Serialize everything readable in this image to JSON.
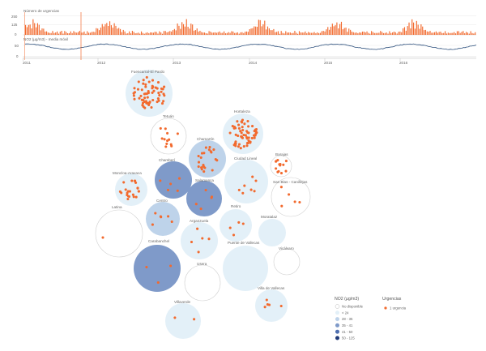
{
  "timeline": {
    "urgencias_title": "Número de urgencias",
    "no2_title": "NO2 (µg/m3) - media móvil",
    "urg_ticks": [
      "250",
      "125",
      "0"
    ],
    "no2_ticks": [
      "50",
      "0"
    ],
    "years": [
      "2011",
      "2012",
      "2013",
      "2014",
      "2015",
      "2016"
    ],
    "colors": {
      "bars": "#f26a2e",
      "no2_line": "#2c4f7c",
      "marker": "#f26a2e"
    }
  },
  "legend": {
    "no2_title": "NO2 (µg/m3)",
    "no2_items": [
      {
        "label": "No disponible",
        "color": "#ffffff"
      },
      {
        "label": "< 24",
        "color": "#e3f0f8"
      },
      {
        "label": "28 - 35",
        "color": "#bed3ea"
      },
      {
        "label": "35 - 41",
        "color": "#7f9ac9"
      },
      {
        "label": "41 - 50",
        "color": "#4f6fb0"
      },
      {
        "label": "50 - 125",
        "color": "#1f3a78"
      }
    ],
    "urg_title": "Urgencias",
    "urg_item": "1 urgencia"
  },
  "chart_data": {
    "type": "bubble-map",
    "districts": [
      {
        "name": "Fuencarral-El Pardo",
        "no2_class": "< 24",
        "urgencias": 62
      },
      {
        "name": "Tetuán",
        "no2_class": "No disponible",
        "urgencias": 12
      },
      {
        "name": "Hortaleza",
        "no2_class": "< 24",
        "urgencias": 58
      },
      {
        "name": "Chamartín",
        "no2_class": "28 - 35",
        "urgencias": 22
      },
      {
        "name": "Barajas",
        "no2_class": "No disponible",
        "urgencias": 14
      },
      {
        "name": "Chamberí",
        "no2_class": "35 - 41",
        "urgencias": 5
      },
      {
        "name": "Ciudad Lineal",
        "no2_class": "< 24",
        "urgencias": 7
      },
      {
        "name": "San Blas - Canillejas",
        "no2_class": "No disponible",
        "urgencias": 5
      },
      {
        "name": "Moncloa-Aravaca",
        "no2_class": "< 24",
        "urgencias": 22
      },
      {
        "name": "Salamanca",
        "no2_class": "35 - 41",
        "urgencias": 5
      },
      {
        "name": "Centro",
        "no2_class": "28 - 35",
        "urgencias": 6
      },
      {
        "name": "Retiro",
        "no2_class": "< 24",
        "urgencias": 4
      },
      {
        "name": "Moratalaz",
        "no2_class": "< 24",
        "urgencias": 0
      },
      {
        "name": "Latina",
        "no2_class": "No disponible",
        "urgencias": 1
      },
      {
        "name": "Arganzuela",
        "no2_class": "< 24",
        "urgencias": 5
      },
      {
        "name": "Puente de Vallecas",
        "no2_class": "< 24",
        "urgencias": 0
      },
      {
        "name": "Vicálvaro",
        "no2_class": "No disponible",
        "urgencias": 0
      },
      {
        "name": "Carabanchel",
        "no2_class": "35 - 41",
        "urgencias": 3
      },
      {
        "name": "Usera",
        "no2_class": "No disponible",
        "urgencias": 0
      },
      {
        "name": "Villa de Vallecas",
        "no2_class": "< 24",
        "urgencias": 5
      },
      {
        "name": "Villaverde",
        "no2_class": "< 24",
        "urgencias": 2
      }
    ]
  }
}
